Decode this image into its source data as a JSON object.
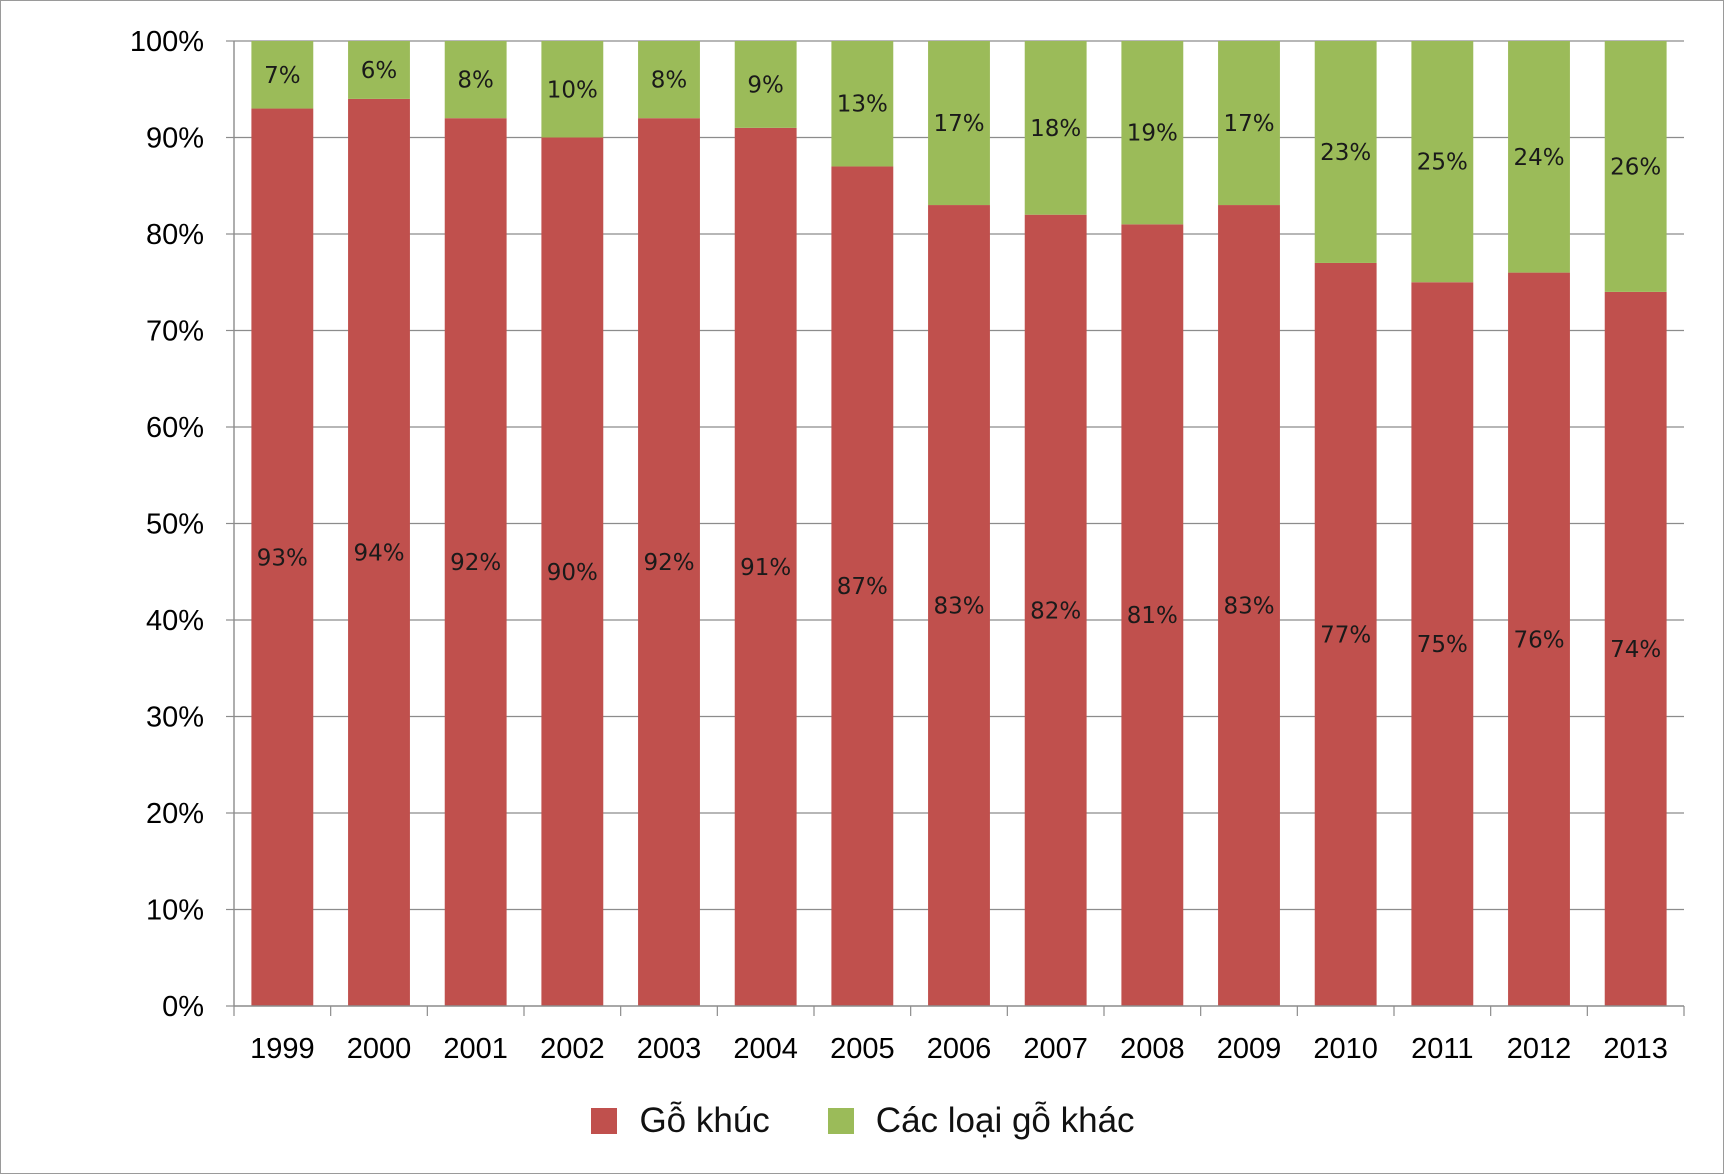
{
  "chart_data": {
    "type": "bar",
    "stacked": true,
    "categories": [
      "1999",
      "2000",
      "2001",
      "2002",
      "2003",
      "2004",
      "2005",
      "2006",
      "2007",
      "2008",
      "2009",
      "2010",
      "2011",
      "2012",
      "2013"
    ],
    "series": [
      {
        "name": "Gỗ khúc",
        "color": "#c0504d",
        "values": [
          93,
          94,
          92,
          90,
          92,
          91,
          87,
          83,
          82,
          81,
          83,
          77,
          75,
          76,
          74
        ],
        "labels": [
          "93%",
          "94%",
          "92%",
          "90%",
          "92%",
          "91%",
          "87%",
          "83%",
          "82%",
          "81%",
          "83%",
          "77%",
          "75%",
          "76%",
          "74%"
        ]
      },
      {
        "name": "Các loại gỗ khác",
        "color": "#9bbb59",
        "values": [
          7,
          6,
          8,
          10,
          8,
          9,
          13,
          17,
          18,
          19,
          17,
          23,
          25,
          24,
          26
        ],
        "labels": [
          "7%",
          "6%",
          "8%",
          "10%",
          "8%",
          "9%",
          "13%",
          "17%",
          "18%",
          "19%",
          "17%",
          "23%",
          "25%",
          "24%",
          "26%"
        ]
      }
    ],
    "y_ticks": [
      "0%",
      "10%",
      "20%",
      "30%",
      "40%",
      "50%",
      "60%",
      "70%",
      "80%",
      "90%",
      "100%"
    ],
    "ylim": [
      0,
      100
    ],
    "grid": true,
    "legend_position": "bottom"
  }
}
